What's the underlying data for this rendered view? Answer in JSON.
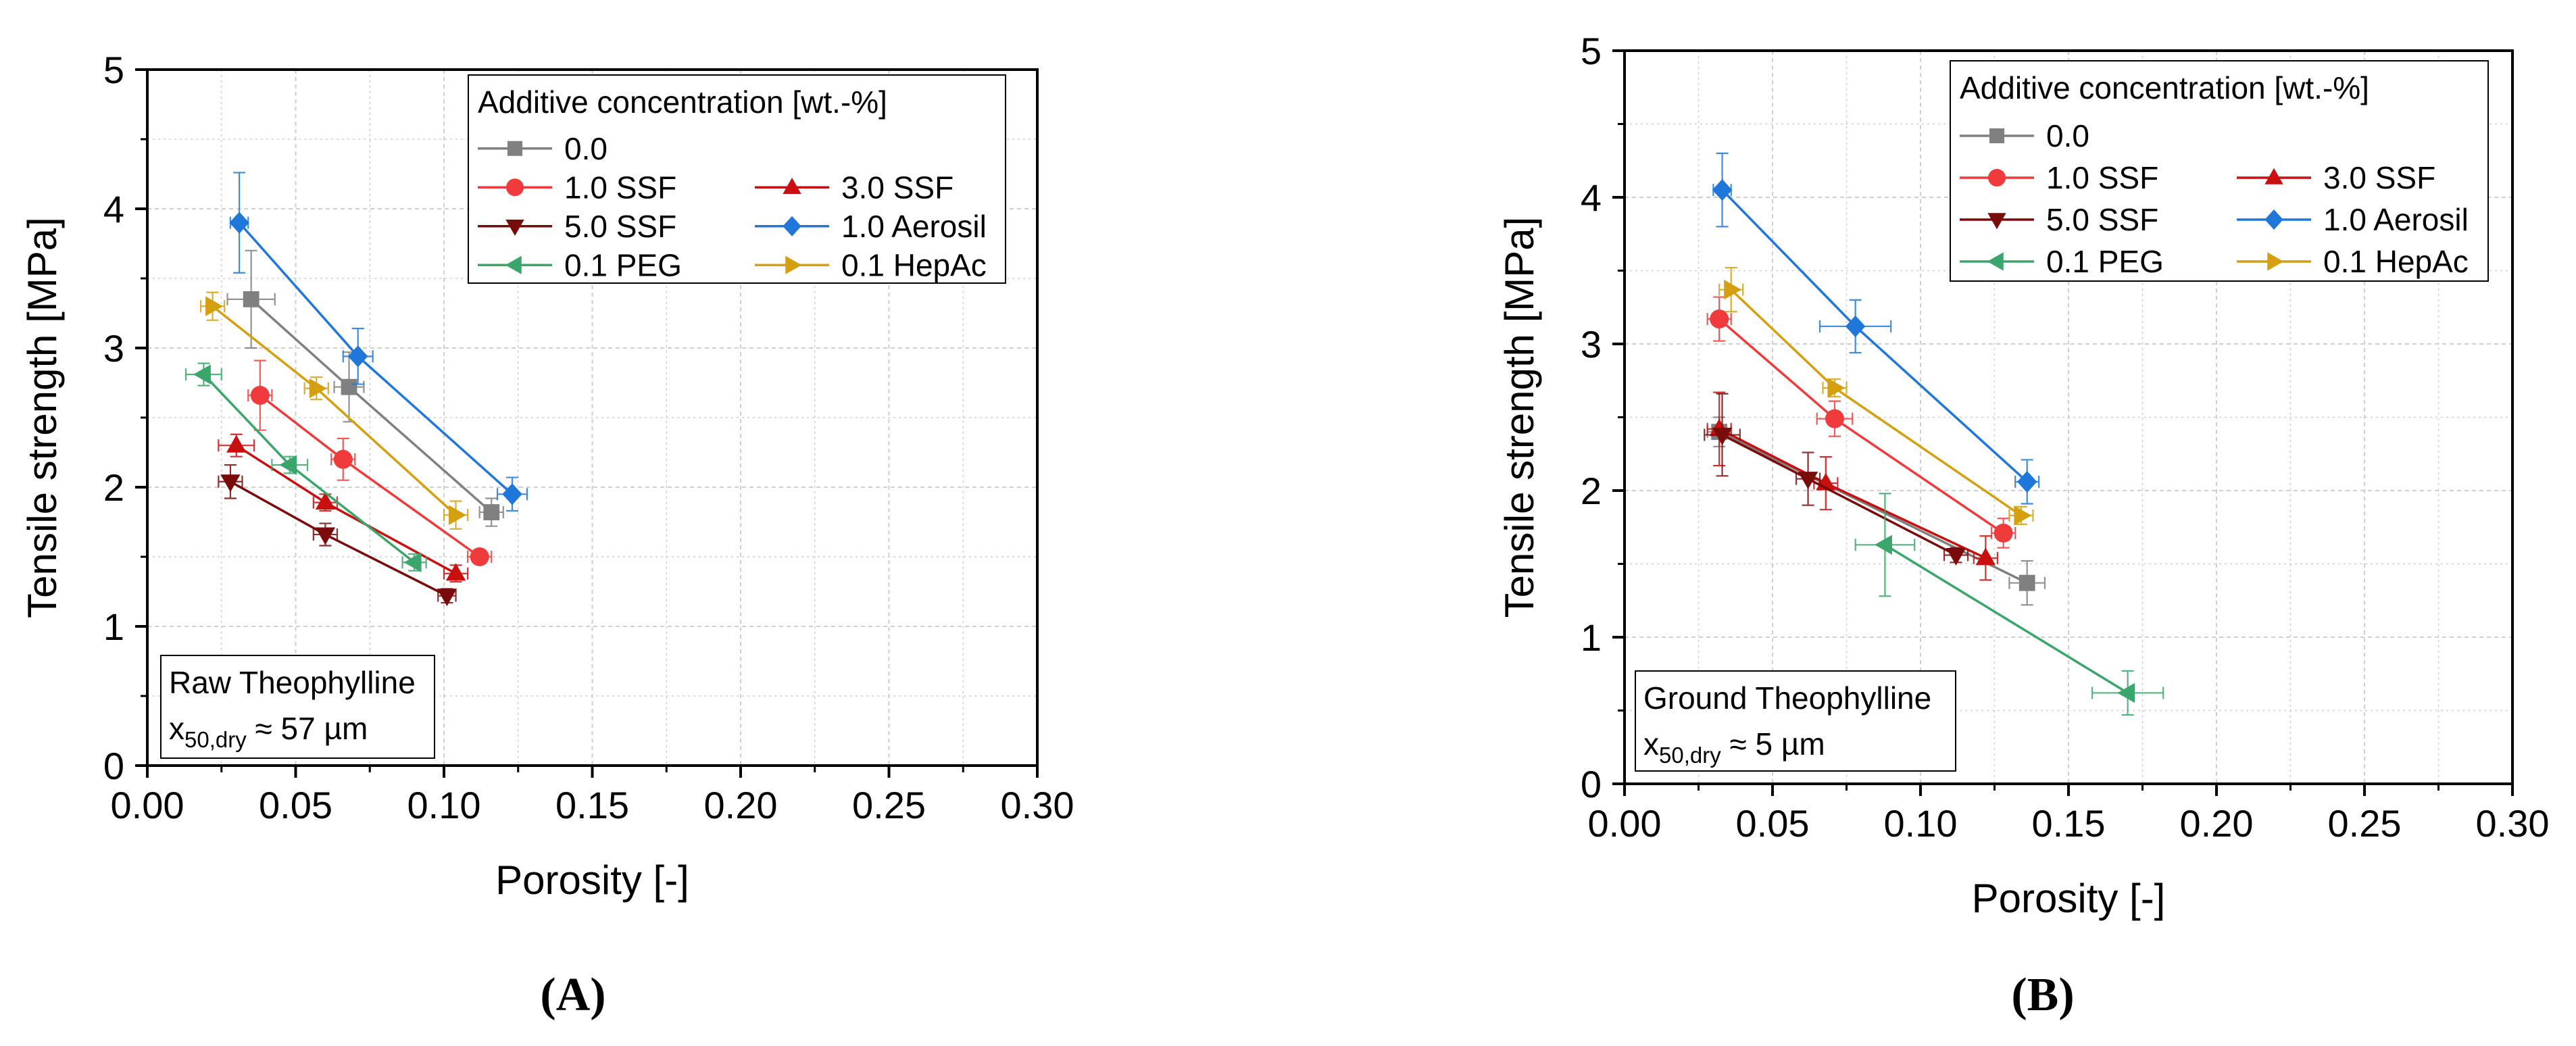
{
  "chart_data": [
    {
      "panel": "A",
      "type": "scatter",
      "panel_label": "(A)",
      "xlabel": "Porosity [-]",
      "ylabel": "Tensile strength [MPa]",
      "xlim": [
        0.0,
        0.3
      ],
      "ylim": [
        0,
        5
      ],
      "x_ticks": [
        "0.00",
        "0.05",
        "0.10",
        "0.15",
        "0.20",
        "0.25",
        "0.30"
      ],
      "y_ticks": [
        "0",
        "1",
        "2",
        "3",
        "4",
        "5"
      ],
      "grid": true,
      "legend_title": "Additive concentration [wt.-%]",
      "legend_position": "top-right",
      "annotation_line1": "Raw Theophylline",
      "annotation_var": "x",
      "annotation_sub": "50,dry",
      "annotation_tail": " ≈ 57 µm",
      "annotation_position": "bottom-left",
      "series": [
        {
          "name": "0.0",
          "color": "#808080",
          "marker": "square",
          "x": [
            0.035,
            0.068,
            0.116
          ],
          "y": [
            3.35,
            2.72,
            1.82
          ],
          "xerr": [
            0.008,
            0.005,
            0.004
          ],
          "yerr": [
            0.35,
            0.25,
            0.1
          ]
        },
        {
          "name": "1.0 SSF",
          "color": "#ef3b3b",
          "marker": "circle",
          "x": [
            0.038,
            0.066,
            0.112
          ],
          "y": [
            2.66,
            2.2,
            1.5
          ],
          "xerr": [
            0.004,
            0.004,
            0.004
          ],
          "yerr": [
            0.25,
            0.15,
            0.05
          ]
        },
        {
          "name": "3.0 SSF",
          "color": "#c81010",
          "marker": "triangle-up",
          "x": [
            0.03,
            0.06,
            0.104
          ],
          "y": [
            2.3,
            1.89,
            1.38
          ],
          "xerr": [
            0.006,
            0.004,
            0.004
          ],
          "yerr": [
            0.08,
            0.06,
            0.06
          ]
        },
        {
          "name": "5.0 SSF",
          "color": "#7a0b0b",
          "marker": "triangle-down",
          "x": [
            0.028,
            0.06,
            0.101
          ],
          "y": [
            2.04,
            1.66,
            1.22
          ],
          "xerr": [
            0.004,
            0.004,
            0.003
          ],
          "yerr": [
            0.12,
            0.08,
            0.05
          ]
        },
        {
          "name": "1.0 Aerosil",
          "color": "#1f77d9",
          "marker": "diamond",
          "x": [
            0.031,
            0.071,
            0.123
          ],
          "y": [
            3.9,
            2.94,
            1.95
          ],
          "xerr": [
            0.003,
            0.005,
            0.005
          ],
          "yerr": [
            0.36,
            0.2,
            0.12
          ]
        },
        {
          "name": "0.1 PEG",
          "color": "#3aa66b",
          "marker": "triangle-left",
          "x": [
            0.019,
            0.048,
            0.09
          ],
          "y": [
            2.81,
            2.16,
            1.46
          ],
          "xerr": [
            0.006,
            0.006,
            0.004
          ],
          "yerr": [
            0.08,
            0.06,
            0.06
          ]
        },
        {
          "name": "0.1 HepAc",
          "color": "#d4a010",
          "marker": "triangle-right",
          "x": [
            0.022,
            0.057,
            0.104
          ],
          "y": [
            3.3,
            2.71,
            1.8
          ],
          "xerr": [
            0.004,
            0.004,
            0.004
          ],
          "yerr": [
            0.1,
            0.08,
            0.1
          ]
        }
      ]
    },
    {
      "panel": "B",
      "type": "scatter",
      "panel_label": "(B)",
      "xlabel": "Porosity [-]",
      "ylabel": "Tensile strength [MPa]",
      "xlim": [
        0.0,
        0.3
      ],
      "ylim": [
        0,
        5
      ],
      "x_ticks": [
        "0.00",
        "0.05",
        "0.10",
        "0.15",
        "0.20",
        "0.25",
        "0.30"
      ],
      "y_ticks": [
        "0",
        "1",
        "2",
        "3",
        "4",
        "5"
      ],
      "grid": true,
      "legend_title": "Additive concentration [wt.-%]",
      "legend_position": "top-right",
      "annotation_line1": "Ground Theophylline",
      "annotation_var": "x",
      "annotation_sub": "50,dry",
      "annotation_tail": " ≈ 5 µm",
      "annotation_position": "bottom-left",
      "series": [
        {
          "name": "0.0",
          "color": "#808080",
          "marker": "square",
          "x": [
            0.032,
            0.136
          ],
          "y": [
            2.4,
            1.37
          ],
          "xerr": [
            0.004,
            0.006
          ],
          "yerr": [
            0.1,
            0.15
          ]
        },
        {
          "name": "1.0 SSF",
          "color": "#ef3b3b",
          "marker": "circle",
          "x": [
            0.032,
            0.071,
            0.128
          ],
          "y": [
            3.17,
            2.49,
            1.71
          ],
          "xerr": [
            0.004,
            0.006,
            0.004
          ],
          "yerr": [
            0.15,
            0.12,
            0.1
          ]
        },
        {
          "name": "3.0 SSF",
          "color": "#c81010",
          "marker": "triangle-up",
          "x": [
            0.032,
            0.068,
            0.122
          ],
          "y": [
            2.42,
            2.05,
            1.54
          ],
          "xerr": [
            0.004,
            0.004,
            0.004
          ],
          "yerr": [
            0.25,
            0.18,
            0.15
          ]
        },
        {
          "name": "5.0 SSF",
          "color": "#7a0b0b",
          "marker": "triangle-down",
          "x": [
            0.033,
            0.062,
            0.112
          ],
          "y": [
            2.38,
            2.08,
            1.56
          ],
          "xerr": [
            0.006,
            0.004,
            0.004
          ],
          "yerr": [
            0.28,
            0.18,
            0.05
          ]
        },
        {
          "name": "1.0 Aerosil",
          "color": "#1f77d9",
          "marker": "diamond",
          "x": [
            0.033,
            0.078,
            0.136
          ],
          "y": [
            4.05,
            3.12,
            2.06
          ],
          "xerr": [
            0.003,
            0.012,
            0.004
          ],
          "yerr": [
            0.25,
            0.18,
            0.15
          ]
        },
        {
          "name": "0.1 PEG",
          "color": "#3aa66b",
          "marker": "triangle-left",
          "x": [
            0.088,
            0.17
          ],
          "y": [
            1.63,
            0.62
          ],
          "xerr": [
            0.01,
            0.012
          ],
          "yerr": [
            0.35,
            0.15
          ]
        },
        {
          "name": "0.1 HepAc",
          "color": "#d4a010",
          "marker": "triangle-right",
          "x": [
            0.036,
            0.071,
            0.134
          ],
          "y": [
            3.37,
            2.7,
            1.83
          ],
          "xerr": [
            0.004,
            0.004,
            0.004
          ],
          "yerr": [
            0.15,
            0.06,
            0.06
          ]
        }
      ]
    }
  ]
}
